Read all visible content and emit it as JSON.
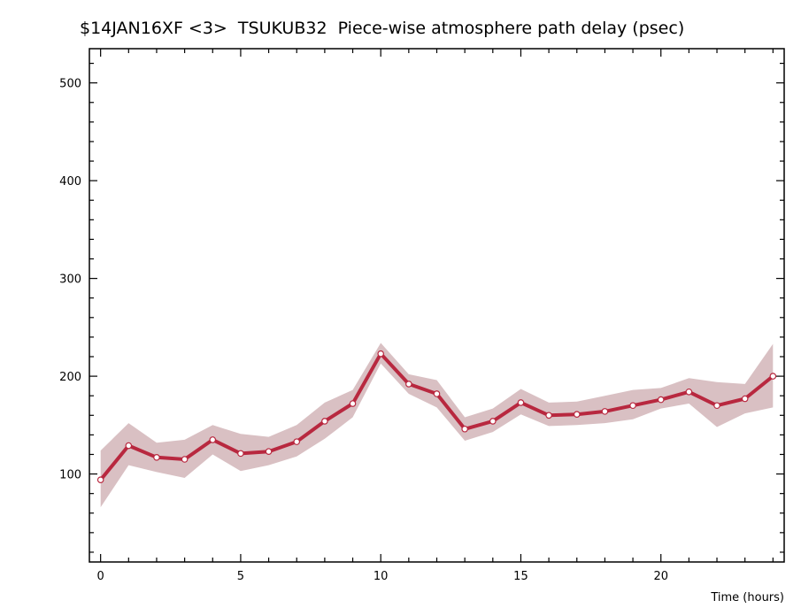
{
  "chart_data": {
    "type": "line",
    "title": "$14JAN16XF <3>  TSUKUB32  Piece-wise atmosphere path delay (psec)",
    "xlabel": "Time (hours)",
    "ylabel": "",
    "xlim": [
      -0.4,
      24.4
    ],
    "ylim": [
      10,
      535
    ],
    "x_ticks": [
      0,
      5,
      10,
      15,
      20
    ],
    "y_ticks": [
      100,
      200,
      300,
      400,
      500
    ],
    "grid": false,
    "legend": "none",
    "colors": {
      "line": "#b8283f",
      "band": "#d9c0c3",
      "marker_fill": "#ffffff"
    },
    "series": [
      {
        "x": [
          0,
          1,
          2,
          3,
          4,
          5,
          6,
          7,
          8,
          9,
          10,
          11,
          12,
          13,
          14,
          15,
          16,
          17,
          18,
          19,
          20,
          21,
          22,
          23,
          24
        ],
        "values": [
          94,
          129,
          117,
          115,
          135,
          121,
          123,
          133,
          154,
          172,
          223,
          192,
          182,
          146,
          154,
          173,
          160,
          161,
          164,
          170,
          176,
          184,
          170,
          177,
          200
        ],
        "lower": [
          66,
          109,
          102,
          96,
          120,
          103,
          109,
          118,
          136,
          158,
          213,
          182,
          168,
          134,
          143,
          161,
          149,
          150,
          152,
          156,
          167,
          172,
          148,
          162,
          168
        ],
        "upper": [
          124,
          152,
          132,
          135,
          150,
          141,
          138,
          150,
          173,
          186,
          234,
          202,
          196,
          158,
          167,
          187,
          173,
          174,
          180,
          186,
          188,
          198,
          194,
          192,
          233
        ]
      }
    ]
  }
}
